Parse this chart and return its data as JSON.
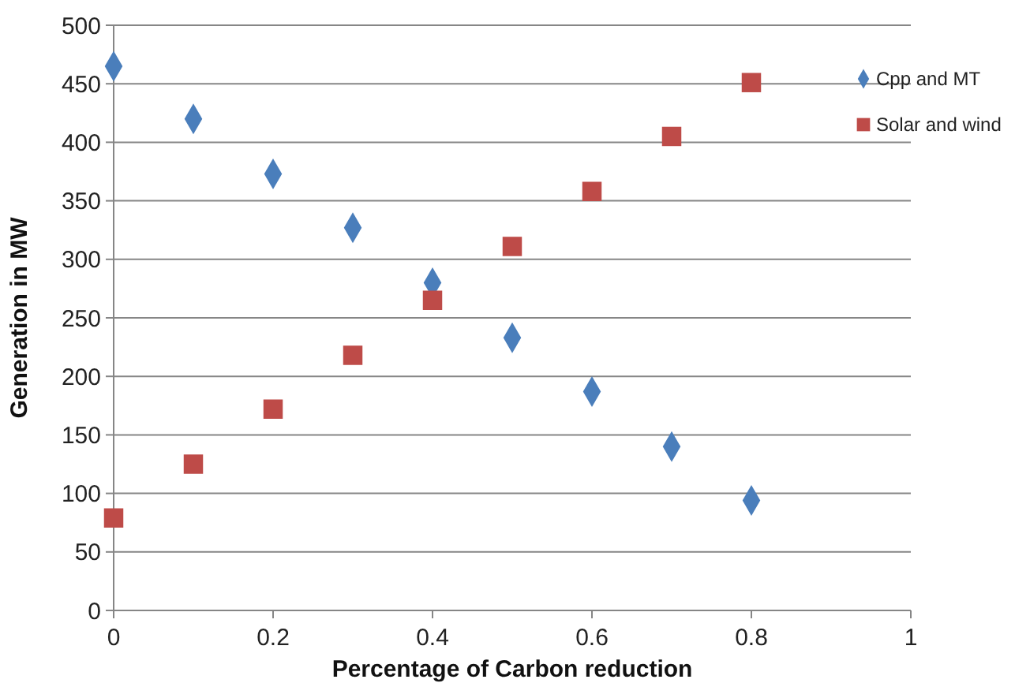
{
  "chart_data": {
    "type": "scatter",
    "xlabel": "Percentage of Carbon reduction",
    "ylabel": "Generation in MW",
    "x": [
      0,
      0.1,
      0.2,
      0.3,
      0.4,
      0.5,
      0.6,
      0.7,
      0.8
    ],
    "series": [
      {
        "name": "Cpp and MT",
        "color": "#4a7ebb",
        "marker": "diamond",
        "values": [
          465,
          420,
          373,
          327,
          280,
          233,
          187,
          140,
          94
        ]
      },
      {
        "name": "Solar and wind",
        "color": "#be4b48",
        "marker": "square",
        "values": [
          79,
          125,
          172,
          218,
          265,
          311,
          358,
          405,
          451
        ]
      }
    ],
    "xlim": [
      0,
      1
    ],
    "xticks": [
      0,
      0.2,
      0.4,
      0.6,
      0.8,
      1
    ],
    "ylim": [
      0,
      500
    ],
    "yticks": [
      0,
      50,
      100,
      150,
      200,
      250,
      300,
      350,
      400,
      450,
      500
    ],
    "grid": "y",
    "legend": "top right"
  }
}
